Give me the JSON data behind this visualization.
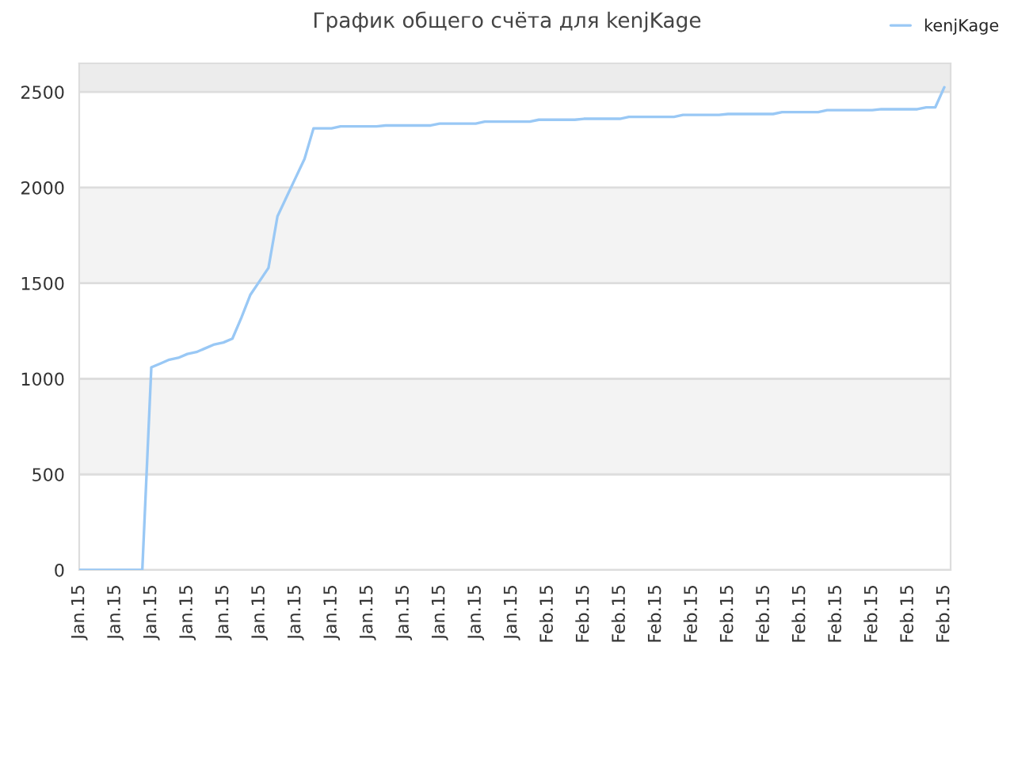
{
  "chart_data": {
    "type": "line",
    "title": "График общего счёта для kenjKage",
    "categories": [
      "Jan.15",
      null,
      null,
      null,
      "Jan.15",
      null,
      null,
      null,
      "Jan.15",
      null,
      null,
      null,
      "Jan.15",
      null,
      null,
      null,
      "Jan.15",
      null,
      null,
      null,
      "Jan.15",
      null,
      null,
      null,
      "Jan.15",
      null,
      null,
      null,
      "Jan.15",
      null,
      null,
      null,
      "Jan.15",
      null,
      null,
      null,
      "Jan.15",
      null,
      null,
      null,
      "Jan.15",
      null,
      null,
      null,
      "Jan.15",
      null,
      null,
      null,
      "Jan.15",
      null,
      null,
      null,
      "Feb.15",
      null,
      null,
      null,
      "Feb.15",
      null,
      null,
      null,
      "Feb.15",
      null,
      null,
      null,
      "Feb.15",
      null,
      null,
      null,
      "Feb.15",
      null,
      null,
      null,
      "Feb.15",
      null,
      null,
      null,
      "Feb.15",
      null,
      null,
      null,
      "Feb.15",
      null,
      null,
      null,
      "Feb.15",
      null,
      null,
      null,
      "Feb.15",
      null,
      null,
      null,
      "Feb.15",
      null,
      null,
      null,
      "Feb.15"
    ],
    "series": [
      {
        "name": "kenjKage",
        "color": "#99c8f5",
        "values": [
          0,
          0,
          0,
          0,
          0,
          0,
          0,
          0,
          1060,
          1080,
          1100,
          1110,
          1130,
          1140,
          1160,
          1180,
          1190,
          1210,
          1320,
          1440,
          1510,
          1580,
          1850,
          1950,
          2050,
          2150,
          2310,
          2310,
          2310,
          2320,
          2320,
          2320,
          2320,
          2320,
          2325,
          2325,
          2325,
          2325,
          2325,
          2325,
          2335,
          2335,
          2335,
          2335,
          2335,
          2345,
          2345,
          2345,
          2345,
          2345,
          2345,
          2355,
          2355,
          2355,
          2355,
          2355,
          2360,
          2360,
          2360,
          2360,
          2360,
          2370,
          2370,
          2370,
          2370,
          2370,
          2370,
          2380,
          2380,
          2380,
          2380,
          2380,
          2385,
          2385,
          2385,
          2385,
          2385,
          2385,
          2395,
          2395,
          2395,
          2395,
          2395,
          2405,
          2405,
          2405,
          2405,
          2405,
          2405,
          2410,
          2410,
          2410,
          2410,
          2410,
          2420,
          2420,
          2525
        ]
      }
    ],
    "ylim": [
      0,
      2650
    ],
    "yticks": [
      0,
      500,
      1000,
      1500,
      2000,
      2500
    ],
    "bands": [
      {
        "axis": "y",
        "from": 500,
        "to": 1000,
        "color": "#f3f3f3"
      },
      {
        "axis": "y",
        "from": 1500,
        "to": 2000,
        "color": "#f3f3f3"
      },
      {
        "axis": "y",
        "from": 2500,
        "to": 2650,
        "color": "#ececec"
      }
    ],
    "grid": "y",
    "legend": "top right",
    "marker": "none",
    "line_style": "solid"
  }
}
